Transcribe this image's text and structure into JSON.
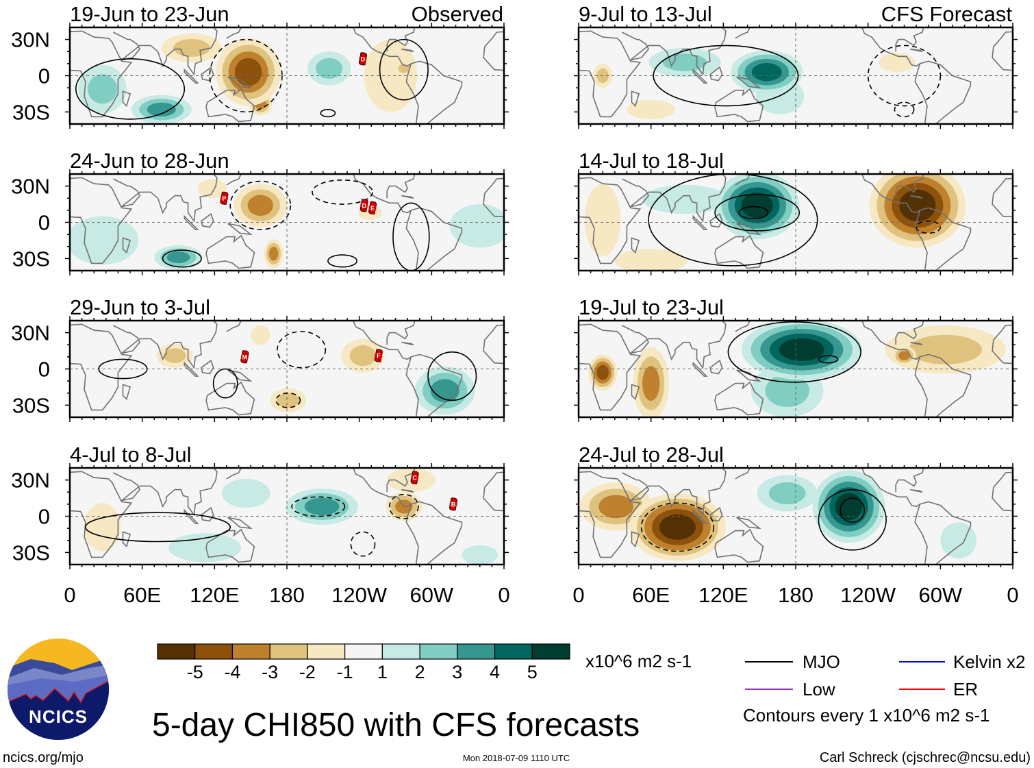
{
  "figure": {
    "title": "5-day CHI850 with CFS forecasts",
    "units": "x10^6 m2 s-1",
    "contour_note": "Contours every 1 x10^6 m2 s-1",
    "timestamp": "Mon 2018-07-09 1110 UTC",
    "author": "Carl Schreck (cjschrec@ncsu.edu)",
    "site": "ncics.org/mjo",
    "logo_text": "NCICS",
    "left_header": "Observed",
    "right_header": "CFS Forecast"
  },
  "lat_labels": [
    "30N",
    "0",
    "30S"
  ],
  "lon_labels": [
    "0",
    "60E",
    "120E",
    "180",
    "120W",
    "60W",
    "0"
  ],
  "colorbar": {
    "colors": [
      "#543005",
      "#8c510a",
      "#bf812d",
      "#dfc27d",
      "#f6e8c3",
      "#f5f5f5",
      "#c7eae5",
      "#80cdc1",
      "#35978f",
      "#01665e",
      "#003c30"
    ],
    "labels": [
      "-5",
      "-4",
      "-3",
      "-2",
      "-1",
      "1",
      "2",
      "3",
      "4",
      "5"
    ]
  },
  "legend": [
    {
      "label": "MJO",
      "color": "#000000"
    },
    {
      "label": "Low",
      "color": "#9933cc"
    },
    {
      "label": "Kelvin x2",
      "color": "#0000ff"
    },
    {
      "label": "ER",
      "color": "#ff0000"
    }
  ],
  "panels": [
    {
      "title": "19-Jun to 23-Jun",
      "column": "observed",
      "anomalies": [
        {
          "lon": 101,
          "lat": 23,
          "rx": 25,
          "ry": 12,
          "v": -2
        },
        {
          "lon": 148,
          "lat": 3,
          "rx": 27,
          "ry": 28,
          "v": -4
        },
        {
          "lon": 158,
          "lat": -23,
          "rx": 10,
          "ry": 10,
          "v": -3
        },
        {
          "lon": 76,
          "lat": -28,
          "rx": 25,
          "ry": 12,
          "v": 3
        },
        {
          "lon": 27,
          "lat": -11,
          "rx": 20,
          "ry": 20,
          "v": 2
        },
        {
          "lon": 215,
          "lat": 6,
          "rx": 18,
          "ry": 14,
          "v": 2
        },
        {
          "lon": 266,
          "lat": 0,
          "rx": 22,
          "ry": 30,
          "v": -1
        },
        {
          "lon": 277,
          "lat": 6,
          "rx": 8,
          "ry": 6,
          "v": -2
        }
      ],
      "contours": [
        {
          "lon": 50,
          "lat": -11,
          "rx": 45,
          "ry": 25,
          "sign": 1
        },
        {
          "lon": 146,
          "lat": 0,
          "rx": 30,
          "ry": 30,
          "sign": -1
        },
        {
          "lon": 277,
          "lat": 5,
          "rx": 20,
          "ry": 25,
          "sign": 1
        },
        {
          "lon": 214,
          "lat": -31,
          "rx": 6,
          "ry": 3,
          "sign": 1
        }
      ],
      "storms": [
        {
          "id": "D",
          "lon": 243,
          "lat": 14
        }
      ]
    },
    {
      "title": "24-Jun to 28-Jun",
      "column": "observed",
      "anomalies": [
        {
          "lon": 158,
          "lat": 14,
          "rx": 22,
          "ry": 18,
          "v": -3
        },
        {
          "lon": 169,
          "lat": -26,
          "rx": 8,
          "ry": 12,
          "v": -3
        },
        {
          "lon": 118,
          "lat": 28,
          "rx": 12,
          "ry": 8,
          "v": -1
        },
        {
          "lon": 90,
          "lat": -29,
          "rx": 20,
          "ry": 10,
          "v": 3
        },
        {
          "lon": 27,
          "lat": -15,
          "rx": 30,
          "ry": 20,
          "v": 1
        },
        {
          "lon": 340,
          "lat": -3,
          "rx": 25,
          "ry": 18,
          "v": 1
        },
        {
          "lon": 249,
          "lat": 8,
          "rx": 10,
          "ry": 6,
          "v": -1
        }
      ],
      "contours": [
        {
          "lon": 93,
          "lat": -30,
          "rx": 16,
          "ry": 7,
          "sign": 1
        },
        {
          "lon": 158,
          "lat": 14,
          "rx": 25,
          "ry": 20,
          "sign": -1
        },
        {
          "lon": 283,
          "lat": -12,
          "rx": 15,
          "ry": 28,
          "sign": 1
        },
        {
          "lon": 226,
          "lat": -32,
          "rx": 12,
          "ry": 5,
          "sign": 1
        },
        {
          "lon": 226,
          "lat": 25,
          "rx": 25,
          "ry": 10,
          "sign": -1
        }
      ],
      "storms": [
        {
          "id": "P",
          "lon": 128,
          "lat": 20
        },
        {
          "id": "D",
          "lon": 244,
          "lat": 14
        },
        {
          "id": "E",
          "lon": 251,
          "lat": 12
        }
      ]
    },
    {
      "title": "29-Jun to 3-Jul",
      "column": "observed",
      "anomalies": [
        {
          "lon": 87,
          "lat": 11,
          "rx": 15,
          "ry": 10,
          "v": -2
        },
        {
          "lon": 181,
          "lat": -26,
          "rx": 15,
          "ry": 10,
          "v": -2
        },
        {
          "lon": 243,
          "lat": 11,
          "rx": 18,
          "ry": 14,
          "v": -2
        },
        {
          "lon": 158,
          "lat": 28,
          "rx": 8,
          "ry": 8,
          "v": -1
        },
        {
          "lon": 311,
          "lat": -18,
          "rx": 25,
          "ry": 20,
          "v": 3
        }
      ],
      "contours": [
        {
          "lon": 317,
          "lat": -6,
          "rx": 20,
          "ry": 20,
          "sign": 1
        },
        {
          "lon": 192,
          "lat": 16,
          "rx": 20,
          "ry": 15,
          "sign": -1
        },
        {
          "lon": 181,
          "lat": -26,
          "rx": 10,
          "ry": 6,
          "sign": -1
        },
        {
          "lon": 44,
          "lat": 0,
          "rx": 20,
          "ry": 8,
          "sign": 1
        },
        {
          "lon": 129,
          "lat": -12,
          "rx": 10,
          "ry": 12,
          "sign": 1
        }
      ],
      "storms": [
        {
          "id": "M",
          "lon": 145,
          "lat": 10
        },
        {
          "id": "F",
          "lon": 256,
          "lat": 11
        }
      ]
    },
    {
      "title": "4-Jul to 8-Jul",
      "column": "observed",
      "anomalies": [
        {
          "lon": 209,
          "lat": 8,
          "rx": 30,
          "ry": 15,
          "v": 3
        },
        {
          "lon": 146,
          "lat": 19,
          "rx": 20,
          "ry": 12,
          "v": 1
        },
        {
          "lon": 112,
          "lat": -26,
          "rx": 30,
          "ry": 12,
          "v": 1
        },
        {
          "lon": 340,
          "lat": -32,
          "rx": 15,
          "ry": 8,
          "v": 1
        },
        {
          "lon": 283,
          "lat": 30,
          "rx": 20,
          "ry": 10,
          "v": -1
        },
        {
          "lon": 277,
          "lat": 8,
          "rx": 15,
          "ry": 12,
          "v": -3
        },
        {
          "lon": 27,
          "lat": -9,
          "rx": 15,
          "ry": 20,
          "v": -1
        }
      ],
      "contours": [
        {
          "lon": 206,
          "lat": 8,
          "rx": 22,
          "ry": 8,
          "sign": -1
        },
        {
          "lon": 73,
          "lat": -9,
          "rx": 60,
          "ry": 12,
          "sign": 1
        },
        {
          "lon": 277,
          "lat": 8,
          "rx": 12,
          "ry": 10,
          "sign": -1
        },
        {
          "lon": 243,
          "lat": -23,
          "rx": 10,
          "ry": 10,
          "sign": -1
        }
      ],
      "storms": [
        {
          "id": "C",
          "lon": 286,
          "lat": 32
        },
        {
          "id": "B",
          "lon": 318,
          "lat": 10
        }
      ]
    },
    {
      "title": "9-Jul to 13-Jul",
      "column": "forecast",
      "anomalies": [
        {
          "lon": 88,
          "lat": 11,
          "rx": 30,
          "ry": 12,
          "v": 2
        },
        {
          "lon": 167,
          "lat": -17,
          "rx": 20,
          "ry": 15,
          "v": 1
        },
        {
          "lon": 156,
          "lat": 3,
          "rx": 30,
          "ry": 18,
          "v": 4
        },
        {
          "lon": 264,
          "lat": 11,
          "rx": 15,
          "ry": 8,
          "v": -1
        },
        {
          "lon": 20,
          "lat": 0,
          "rx": 8,
          "ry": 10,
          "v": -2
        },
        {
          "lon": 60,
          "lat": -28,
          "rx": 20,
          "ry": 8,
          "v": -1
        }
      ],
      "contours": [
        {
          "lon": 122,
          "lat": 0,
          "rx": 60,
          "ry": 25,
          "sign": 1
        },
        {
          "lon": 270,
          "lat": 0,
          "rx": 30,
          "ry": 25,
          "sign": -1
        },
        {
          "lon": 270,
          "lat": -28,
          "rx": 8,
          "ry": 6,
          "sign": -1
        }
      ],
      "storms": []
    },
    {
      "title": "14-Jul to 18-Jul",
      "column": "forecast",
      "anomalies": [
        {
          "lon": 88,
          "lat": 19,
          "rx": 35,
          "ry": 12,
          "v": 1
        },
        {
          "lon": 148,
          "lat": 14,
          "rx": 35,
          "ry": 28,
          "v": 5
        },
        {
          "lon": 281,
          "lat": 14,
          "rx": 40,
          "ry": 35,
          "v": -5
        },
        {
          "lon": 20,
          "lat": 2,
          "rx": 15,
          "ry": 30,
          "v": -1
        },
        {
          "lon": 60,
          "lat": -32,
          "rx": 30,
          "ry": 10,
          "v": -1
        }
      ],
      "contours": [
        {
          "lon": 128,
          "lat": 2,
          "rx": 70,
          "ry": 38,
          "sign": 1
        },
        {
          "lon": 148,
          "lat": 8,
          "rx": 35,
          "ry": 15,
          "sign": 1
        },
        {
          "lon": 145,
          "lat": 8,
          "rx": 12,
          "ry": 5,
          "sign": 1
        },
        {
          "lon": 290,
          "lat": -4,
          "rx": 10,
          "ry": 5,
          "sign": -1
        }
      ],
      "storms": []
    },
    {
      "title": "19-Jul to 23-Jul",
      "column": "forecast",
      "anomalies": [
        {
          "lon": 173,
          "lat": -18,
          "rx": 30,
          "ry": 22,
          "v": 2
        },
        {
          "lon": 185,
          "lat": 16,
          "rx": 50,
          "ry": 25,
          "v": 5
        },
        {
          "lon": 304,
          "lat": 16,
          "rx": 50,
          "ry": 20,
          "v": -2
        },
        {
          "lon": 60,
          "lat": -12,
          "rx": 15,
          "ry": 30,
          "v": -3
        },
        {
          "lon": 20,
          "lat": -3,
          "rx": 12,
          "ry": 15,
          "v": -4
        },
        {
          "lon": 270,
          "lat": 11,
          "rx": 10,
          "ry": 8,
          "v": -3
        }
      ],
      "contours": [
        {
          "lon": 179,
          "lat": 14,
          "rx": 55,
          "ry": 25,
          "sign": 1
        },
        {
          "lon": 207,
          "lat": 8,
          "rx": 8,
          "ry": 3,
          "sign": 1
        }
      ],
      "storms": []
    },
    {
      "title": "24-Jul to 28-Jul",
      "column": "forecast",
      "anomalies": [
        {
          "lon": 31,
          "lat": 8,
          "rx": 30,
          "ry": 20,
          "v": -3
        },
        {
          "lon": 82,
          "lat": -9,
          "rx": 40,
          "ry": 28,
          "v": -5
        },
        {
          "lon": 173,
          "lat": 19,
          "rx": 25,
          "ry": 15,
          "v": 2
        },
        {
          "lon": 224,
          "lat": 8,
          "rx": 30,
          "ry": 30,
          "v": 5
        },
        {
          "lon": 315,
          "lat": -20,
          "rx": 15,
          "ry": 15,
          "v": 1
        }
      ],
      "contours": [
        {
          "lon": 227,
          "lat": -3,
          "rx": 28,
          "ry": 25,
          "sign": 1
        },
        {
          "lon": 227,
          "lat": 5,
          "rx": 10,
          "ry": 10,
          "sign": 1
        },
        {
          "lon": 82,
          "lat": -9,
          "rx": 30,
          "ry": 20,
          "sign": -1
        }
      ],
      "storms": []
    }
  ]
}
